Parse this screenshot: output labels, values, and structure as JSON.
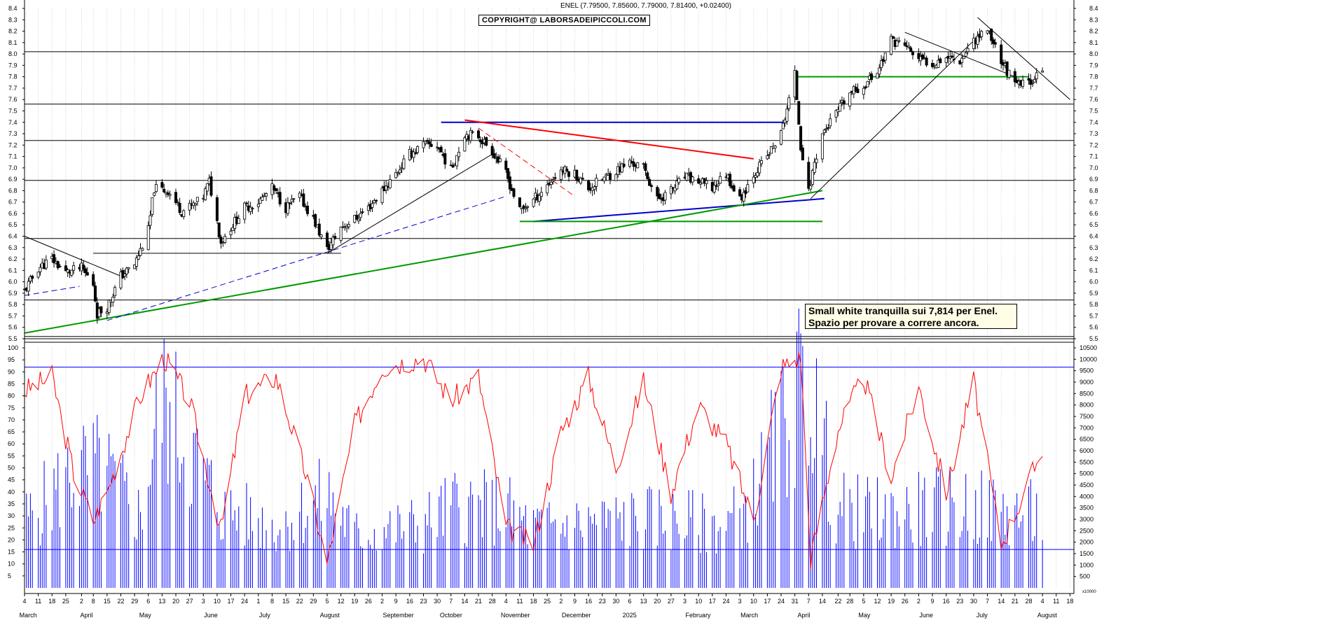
{
  "header": {
    "title": "ENEL (7.79500, 7.85600, 7.79000, 7.81400, +0.02400)"
  },
  "copyright": "COPYRIGHT@ LABORSADEIPICCOLI.COM",
  "note": {
    "line1": "Small white tranquilla sui 7,814 per Enel.",
    "line2": "Spazio per provare a correre ancora."
  },
  "chart_data": [
    {
      "type": "candlestick",
      "name": "ENEL",
      "ylim": [
        5.5,
        8.4
      ],
      "yticks": [
        "5.5",
        "5.6",
        "5.7",
        "5.8",
        "5.9",
        "6.0",
        "6.1",
        "6.2",
        "6.3",
        "6.4",
        "6.5",
        "6.6",
        "6.7",
        "6.8",
        "6.9",
        "7.0",
        "7.1",
        "7.2",
        "7.3",
        "7.4",
        "7.5",
        "7.6",
        "7.7",
        "7.8",
        "7.9",
        "8.0",
        "8.1",
        "8.2",
        "8.3",
        "8.4"
      ],
      "price_path": [
        [
          "2024-03-04",
          5.92
        ],
        [
          "2024-03-11",
          6.12
        ],
        [
          "2024-03-18",
          6.2
        ],
        [
          "2024-03-25",
          6.08
        ],
        [
          "2024-04-02",
          6.12
        ],
        [
          "2024-04-08",
          5.98
        ],
        [
          "2024-04-10",
          5.72
        ],
        [
          "2024-04-15",
          5.78
        ],
        [
          "2024-04-22",
          6.05
        ],
        [
          "2024-04-29",
          6.15
        ],
        [
          "2024-05-06",
          6.45
        ],
        [
          "2024-05-09",
          6.82
        ],
        [
          "2024-05-16",
          6.8
        ],
        [
          "2024-05-23",
          6.62
        ],
        [
          "2024-05-30",
          6.68
        ],
        [
          "2024-06-03",
          6.75
        ],
        [
          "2024-06-06",
          6.88
        ],
        [
          "2024-06-12",
          6.35
        ],
        [
          "2024-06-17",
          6.48
        ],
        [
          "2024-06-24",
          6.65
        ],
        [
          "2024-07-01",
          6.7
        ],
        [
          "2024-07-08",
          6.82
        ],
        [
          "2024-07-15",
          6.65
        ],
        [
          "2024-07-22",
          6.75
        ],
        [
          "2024-07-29",
          6.55
        ],
        [
          "2024-08-05",
          6.28
        ],
        [
          "2024-08-12",
          6.48
        ],
        [
          "2024-08-19",
          6.55
        ],
        [
          "2024-08-26",
          6.65
        ],
        [
          "2024-09-02",
          6.8
        ],
        [
          "2024-09-09",
          6.95
        ],
        [
          "2024-09-16",
          7.12
        ],
        [
          "2024-09-23",
          7.2
        ],
        [
          "2024-09-30",
          7.2
        ],
        [
          "2024-10-07",
          6.98
        ],
        [
          "2024-10-14",
          7.3
        ],
        [
          "2024-10-21",
          7.28
        ],
        [
          "2024-10-28",
          7.15
        ],
        [
          "2024-11-04",
          6.95
        ],
        [
          "2024-11-11",
          6.62
        ],
        [
          "2024-11-18",
          6.72
        ],
        [
          "2024-11-25",
          6.85
        ],
        [
          "2024-12-02",
          6.98
        ],
        [
          "2024-12-09",
          6.95
        ],
        [
          "2024-12-16",
          6.82
        ],
        [
          "2024-12-23",
          6.9
        ],
        [
          "2025-01-06",
          7.05
        ],
        [
          "2025-01-13",
          7.0
        ],
        [
          "2025-01-20",
          6.72
        ],
        [
          "2025-01-27",
          6.8
        ],
        [
          "2025-02-03",
          6.92
        ],
        [
          "2025-02-10",
          6.88
        ],
        [
          "2025-02-17",
          6.82
        ],
        [
          "2025-02-24",
          6.95
        ],
        [
          "2025-03-03",
          6.72
        ],
        [
          "2025-03-10",
          6.95
        ],
        [
          "2025-03-17",
          7.1
        ],
        [
          "2025-03-24",
          7.3
        ],
        [
          "2025-03-31",
          7.82
        ],
        [
          "2025-04-03",
          7.2
        ],
        [
          "2025-04-07",
          6.78
        ],
        [
          "2025-04-10",
          7.05
        ],
        [
          "2025-04-14",
          7.3
        ],
        [
          "2025-04-22",
          7.5
        ],
        [
          "2025-04-28",
          7.65
        ],
        [
          "2025-05-05",
          7.72
        ],
        [
          "2025-05-12",
          7.85
        ],
        [
          "2025-05-19",
          8.12
        ],
        [
          "2025-05-26",
          8.08
        ],
        [
          "2025-06-02",
          7.95
        ],
        [
          "2025-06-09",
          7.92
        ],
        [
          "2025-06-16",
          7.98
        ],
        [
          "2025-06-23",
          7.95
        ],
        [
          "2025-06-30",
          8.12
        ],
        [
          "2025-07-07",
          8.22
        ],
        [
          "2025-07-14",
          7.95
        ],
        [
          "2025-07-21",
          7.72
        ],
        [
          "2025-07-28",
          7.75
        ],
        [
          "2025-08-01",
          7.82
        ],
        [
          "2025-08-04",
          7.81
        ]
      ],
      "horizontal_levels": [
        8.02,
        7.56,
        7.24,
        6.89,
        6.38,
        5.84,
        5.52
      ],
      "trendlines": [
        {
          "color": "#0000cc",
          "from": [
            "2024-10-02",
            7.4
          ],
          "to": [
            "2025-03-25",
            7.4
          ]
        },
        {
          "color": "#ff0000",
          "from": [
            "2024-10-14",
            7.42
          ],
          "to": [
            "2025-03-10",
            7.08
          ]
        },
        {
          "color": "#0000cc",
          "from": [
            "2024-11-18",
            6.53
          ],
          "to": [
            "2025-04-15",
            6.73
          ]
        },
        {
          "color": "#009900",
          "from": [
            "2024-11-11",
            6.53
          ],
          "to": [
            "2025-04-14",
            6.53
          ]
        },
        {
          "color": "#009900",
          "from": [
            "2024-03-04",
            5.55
          ],
          "to": [
            "2025-04-14",
            6.8
          ]
        },
        {
          "color": "#009900",
          "from": [
            "2025-03-31",
            7.8
          ],
          "to": [
            "2025-07-28",
            7.8
          ]
        },
        {
          "color": "#000000",
          "from": [
            "2024-03-04",
            6.4
          ],
          "to": [
            "2024-04-22",
            6.05
          ]
        },
        {
          "color": "#000000",
          "from": [
            "2024-08-05",
            6.25
          ],
          "to": [
            "2024-10-28",
            7.12
          ]
        },
        {
          "color": "#000000",
          "from": [
            "2024-04-08",
            6.25
          ],
          "to": [
            "2024-08-12",
            6.25
          ]
        },
        {
          "color": "#000000",
          "from": [
            "2025-04-08",
            6.73
          ],
          "to": [
            "2025-07-02",
            8.15
          ]
        },
        {
          "color": "#000000",
          "from": [
            "2025-05-26",
            8.19
          ],
          "to": [
            "2025-07-21",
            7.8
          ]
        },
        {
          "color": "#000000",
          "from": [
            "2025-07-02",
            8.32
          ],
          "to": [
            "2025-08-18",
            7.6
          ]
        }
      ]
    },
    {
      "type": "line+bar",
      "name": "oscillator and volume",
      "ylim_left": [
        0,
        100
      ],
      "yticks_left": [
        "5",
        "10",
        "15",
        "20",
        "25",
        "30",
        "35",
        "40",
        "45",
        "50",
        "55",
        "60",
        "65",
        "70",
        "75",
        "80",
        "85",
        "90",
        "95",
        "100"
      ],
      "ylim_right": [
        0,
        10500
      ],
      "yticks_right": [
        "500",
        "1000",
        "1500",
        "2000",
        "2500",
        "3000",
        "3500",
        "4000",
        "4500",
        "5000",
        "5500",
        "6000",
        "6500",
        "7000",
        "7500",
        "8000",
        "8500",
        "9000",
        "9500",
        "10000",
        "10500"
      ],
      "right_unit": "x10000",
      "levels": [
        16,
        92
      ],
      "oscillator": [
        [
          "2024-03-04",
          82
        ],
        [
          "2024-03-18",
          88
        ],
        [
          "2024-03-29",
          48
        ],
        [
          "2024-04-08",
          28
        ],
        [
          "2024-04-15",
          40
        ],
        [
          "2024-05-02",
          80
        ],
        [
          "2024-05-14",
          96
        ],
        [
          "2024-05-27",
          78
        ],
        [
          "2024-06-12",
          24
        ],
        [
          "2024-06-24",
          80
        ],
        [
          "2024-07-10",
          88
        ],
        [
          "2024-07-25",
          48
        ],
        [
          "2024-08-05",
          10
        ],
        [
          "2024-08-19",
          68
        ],
        [
          "2024-09-02",
          92
        ],
        [
          "2024-09-23",
          96
        ],
        [
          "2024-10-07",
          78
        ],
        [
          "2024-10-21",
          88
        ],
        [
          "2024-11-04",
          25
        ],
        [
          "2024-11-18",
          18
        ],
        [
          "2024-12-02",
          65
        ],
        [
          "2024-12-16",
          88
        ],
        [
          "2024-12-30",
          50
        ],
        [
          "2025-01-13",
          86
        ],
        [
          "2025-01-27",
          40
        ],
        [
          "2025-02-10",
          76
        ],
        [
          "2025-02-24",
          60
        ],
        [
          "2025-03-10",
          28
        ],
        [
          "2025-03-24",
          92
        ],
        [
          "2025-04-03",
          96
        ],
        [
          "2025-04-08",
          12
        ],
        [
          "2025-04-22",
          66
        ],
        [
          "2025-05-05",
          88
        ],
        [
          "2025-05-19",
          46
        ],
        [
          "2025-06-02",
          84
        ],
        [
          "2025-06-16",
          40
        ],
        [
          "2025-06-30",
          86
        ],
        [
          "2025-07-14",
          18
        ],
        [
          "2025-07-28",
          44
        ],
        [
          "2025-08-04",
          58
        ]
      ],
      "volume": [
        [
          "2024-03-04",
          3200
        ],
        [
          "2024-03-29",
          5600
        ],
        [
          "2024-04-12",
          5800
        ],
        [
          "2024-05-02",
          3500
        ],
        [
          "2024-05-13",
          9200
        ],
        [
          "2024-06-12",
          3800
        ],
        [
          "2024-07-10",
          3000
        ],
        [
          "2024-08-05",
          4500
        ],
        [
          "2024-08-19",
          2600
        ],
        [
          "2024-09-23",
          3100
        ],
        [
          "2024-10-09",
          4000
        ],
        [
          "2024-11-04",
          3800
        ],
        [
          "2024-11-18",
          2900
        ],
        [
          "2024-12-16",
          3200
        ],
        [
          "2025-01-20",
          3400
        ],
        [
          "2025-02-24",
          3000
        ],
        [
          "2025-03-10",
          4400
        ],
        [
          "2025-03-31",
          9200
        ],
        [
          "2025-04-07",
          9800
        ],
        [
          "2025-04-22",
          3800
        ],
        [
          "2025-05-19",
          3600
        ],
        [
          "2025-06-16",
          4000
        ],
        [
          "2025-07-07",
          3800
        ],
        [
          "2025-08-01",
          3500
        ]
      ]
    }
  ],
  "x_axis": {
    "months": [
      {
        "label": "March",
        "date": "2024-03-01"
      },
      {
        "label": "April",
        "date": "2024-04-01"
      },
      {
        "label": "May",
        "date": "2024-05-01"
      },
      {
        "label": "June",
        "date": "2024-06-03"
      },
      {
        "label": "July",
        "date": "2024-07-01"
      },
      {
        "label": "August",
        "date": "2024-08-01"
      },
      {
        "label": "September",
        "date": "2024-09-02"
      },
      {
        "label": "October",
        "date": "2024-10-01"
      },
      {
        "label": "November",
        "date": "2024-11-01"
      },
      {
        "label": "December",
        "date": "2024-12-02"
      },
      {
        "label": "2025",
        "date": "2025-01-02"
      },
      {
        "label": "February",
        "date": "2025-02-03"
      },
      {
        "label": "March",
        "date": "2025-03-03"
      },
      {
        "label": "April",
        "date": "2025-04-01"
      },
      {
        "label": "May",
        "date": "2025-05-02"
      },
      {
        "label": "June",
        "date": "2025-06-02"
      },
      {
        "label": "July",
        "date": "2025-07-01"
      },
      {
        "label": "August",
        "date": "2025-08-01"
      }
    ],
    "weeks": [
      {
        "label": "4",
        "date": "2024-03-04"
      },
      {
        "label": "11",
        "date": "2024-03-11"
      },
      {
        "label": "18",
        "date": "2024-03-18"
      },
      {
        "label": "25",
        "date": "2024-03-25"
      },
      {
        "label": "2",
        "date": "2024-04-02"
      },
      {
        "label": "8",
        "date": "2024-04-08"
      },
      {
        "label": "15",
        "date": "2024-04-15"
      },
      {
        "label": "22",
        "date": "2024-04-22"
      },
      {
        "label": "29",
        "date": "2024-04-29"
      },
      {
        "label": "6",
        "date": "2024-05-06"
      },
      {
        "label": "13",
        "date": "2024-05-13"
      },
      {
        "label": "20",
        "date": "2024-05-20"
      },
      {
        "label": "27",
        "date": "2024-05-27"
      },
      {
        "label": "3",
        "date": "2024-06-03"
      },
      {
        "label": "10",
        "date": "2024-06-10"
      },
      {
        "label": "17",
        "date": "2024-06-17"
      },
      {
        "label": "24",
        "date": "2024-06-24"
      },
      {
        "label": "1",
        "date": "2024-07-01"
      },
      {
        "label": "8",
        "date": "2024-07-08"
      },
      {
        "label": "15",
        "date": "2024-07-15"
      },
      {
        "label": "22",
        "date": "2024-07-22"
      },
      {
        "label": "29",
        "date": "2024-07-29"
      },
      {
        "label": "5",
        "date": "2024-08-05"
      },
      {
        "label": "12",
        "date": "2024-08-12"
      },
      {
        "label": "19",
        "date": "2024-08-19"
      },
      {
        "label": "26",
        "date": "2024-08-26"
      },
      {
        "label": "2",
        "date": "2024-09-02"
      },
      {
        "label": "9",
        "date": "2024-09-09"
      },
      {
        "label": "16",
        "date": "2024-09-16"
      },
      {
        "label": "23",
        "date": "2024-09-23"
      },
      {
        "label": "30",
        "date": "2024-09-30"
      },
      {
        "label": "7",
        "date": "2024-10-07"
      },
      {
        "label": "14",
        "date": "2024-10-14"
      },
      {
        "label": "21",
        "date": "2024-10-21"
      },
      {
        "label": "28",
        "date": "2024-10-28"
      },
      {
        "label": "4",
        "date": "2024-11-04"
      },
      {
        "label": "11",
        "date": "2024-11-11"
      },
      {
        "label": "18",
        "date": "2024-11-18"
      },
      {
        "label": "25",
        "date": "2024-11-25"
      },
      {
        "label": "2",
        "date": "2024-12-02"
      },
      {
        "label": "9",
        "date": "2024-12-09"
      },
      {
        "label": "16",
        "date": "2024-12-16"
      },
      {
        "label": "23",
        "date": "2024-12-23"
      },
      {
        "label": "30",
        "date": "2024-12-30"
      },
      {
        "label": "6",
        "date": "2025-01-06"
      },
      {
        "label": "13",
        "date": "2025-01-13"
      },
      {
        "label": "20",
        "date": "2025-01-20"
      },
      {
        "label": "27",
        "date": "2025-01-27"
      },
      {
        "label": "3",
        "date": "2025-02-03"
      },
      {
        "label": "10",
        "date": "2025-02-10"
      },
      {
        "label": "17",
        "date": "2025-02-17"
      },
      {
        "label": "24",
        "date": "2025-02-24"
      },
      {
        "label": "3",
        "date": "2025-03-03"
      },
      {
        "label": "10",
        "date": "2025-03-10"
      },
      {
        "label": "17",
        "date": "2025-03-17"
      },
      {
        "label": "24",
        "date": "2025-03-24"
      },
      {
        "label": "31",
        "date": "2025-03-31"
      },
      {
        "label": "7",
        "date": "2025-04-07"
      },
      {
        "label": "14",
        "date": "2025-04-14"
      },
      {
        "label": "22",
        "date": "2025-04-22"
      },
      {
        "label": "28",
        "date": "2025-04-28"
      },
      {
        "label": "5",
        "date": "2025-05-05"
      },
      {
        "label": "12",
        "date": "2025-05-12"
      },
      {
        "label": "19",
        "date": "2025-05-19"
      },
      {
        "label": "26",
        "date": "2025-05-26"
      },
      {
        "label": "2",
        "date": "2025-06-02"
      },
      {
        "label": "9",
        "date": "2025-06-09"
      },
      {
        "label": "16",
        "date": "2025-06-16"
      },
      {
        "label": "23",
        "date": "2025-06-23"
      },
      {
        "label": "30",
        "date": "2025-06-30"
      },
      {
        "label": "7",
        "date": "2025-07-07"
      },
      {
        "label": "14",
        "date": "2025-07-14"
      },
      {
        "label": "21",
        "date": "2025-07-21"
      },
      {
        "label": "28",
        "date": "2025-07-28"
      },
      {
        "label": "4",
        "date": "2025-08-04"
      },
      {
        "label": "11",
        "date": "2025-08-11"
      },
      {
        "label": "18",
        "date": "2025-08-18"
      }
    ]
  },
  "colors": {
    "oscillator": "#ff0000",
    "volume": "#0000ff",
    "up_candle": "#ffffff",
    "down_candle": "#000000",
    "grid": "#bbbbbb"
  }
}
